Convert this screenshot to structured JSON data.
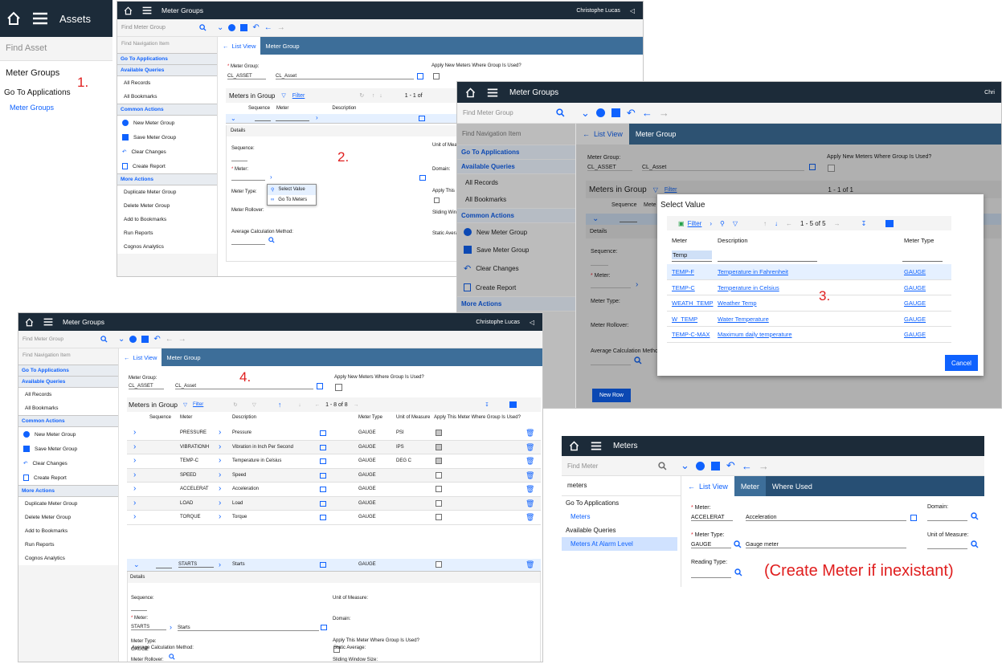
{
  "step_labels": {
    "s1": "1.",
    "s2": "2.",
    "s3": "3.",
    "s4": "4.",
    "note": "(Create Meter if inexistant)"
  },
  "assets": {
    "title": "Assets",
    "search_placeholder": "Find Asset",
    "section": "Meter Groups",
    "goto": "Go To Applications",
    "link": "Meter Groups"
  },
  "common": {
    "search_placeholder": "Find Meter Group",
    "nav_placeholder": "Find Navigation Item",
    "user": "Christophe Lucas",
    "app_title": "Meter Groups",
    "go_to_apps": "Go To Applications",
    "available_queries": "Available Queries",
    "all_records": "All Records",
    "all_bookmarks": "All Bookmarks",
    "common_actions": "Common Actions",
    "new": "New Meter Group",
    "save": "Save Meter Group",
    "clear": "Clear Changes",
    "report": "Create Report",
    "more_actions": "More Actions",
    "duplicate": "Duplicate Meter Group",
    "delete": "Delete Meter Group",
    "bookmark": "Add to Bookmarks",
    "run_reports": "Run Reports",
    "cognos": "Cognos Analytics",
    "list_view": "List View",
    "meter_group_tab": "Meter Group",
    "meter_group_label": "Meter Group:",
    "meter_group_value": "CL_ASSET",
    "meter_group_desc": "CL_Asset",
    "apply_new": "Apply New Meters Where Group Is Used?",
    "meters_in_group": "Meters in Group",
    "filter": "Filter",
    "col_sequence": "Sequence",
    "col_meter": "Meter",
    "col_description": "Description",
    "details": "Details",
    "sequence_label": "Sequence:",
    "meter_label": "Meter:",
    "meter_type_label": "Meter Type:",
    "meter_rollover_label": "Meter Rollover:",
    "avg_calc_label": "Average Calculation Method:",
    "uom_label": "Unit of Measure:",
    "domain_label": "Domain:",
    "apply_this": "Apply This Meter Where Group Is Used?",
    "sliding_label": "Sliding Window Size:",
    "static_label": "Static Average:",
    "new_row": "New Row"
  },
  "s2": {
    "pager": "1 - 1 of",
    "menu": [
      "Select Value",
      "Go To Meters"
    ],
    "uom_cut": "Unit of Meas",
    "apply_cut": "Apply This M",
    "sliding_cut": "Sliding Wind",
    "static_cut": "Static Avera",
    "user_cut": "Chri"
  },
  "s3": {
    "pager": "1 - 1 of 1",
    "dialog_title": "Select Value",
    "filter": "Filter",
    "pager_dialog": "1 - 5 of 5",
    "cols": [
      "Meter",
      "Description",
      "Meter Type"
    ],
    "filter_value": "Temp",
    "rows": [
      {
        "meter": "TEMP-F",
        "desc": "Temperature in Fahrenheit",
        "type": "GAUGE"
      },
      {
        "meter": "TEMP-C",
        "desc": "Temperature in Celsius",
        "type": "GAUGE"
      },
      {
        "meter": "WEATH_TEMP",
        "desc": "Weather Temp",
        "type": "GAUGE"
      },
      {
        "meter": "W_TEMP",
        "desc": "Water Temperature",
        "type": "GAUGE"
      },
      {
        "meter": "TEMP-C-MAX",
        "desc": "Maximum daily temperature",
        "type": "GAUGE"
      }
    ],
    "cancel": "Cancel",
    "mete_cut": "Mete",
    "avg_cut": "Average Calculation Metho"
  },
  "s4": {
    "pager": "1 - 8 of 8",
    "cols": [
      "Sequence",
      "Meter",
      "Description",
      "Meter Type",
      "Unit of Measure",
      "Apply This Meter Where Group Is Used?"
    ],
    "rows": [
      {
        "meter": "PRESSURE",
        "desc": "Pressure",
        "type": "GAUGE",
        "uom": "PSI"
      },
      {
        "meter": "VIBRATIONH",
        "desc": "Vibration in Inch Per Second",
        "type": "GAUGE",
        "uom": "IPS"
      },
      {
        "meter": "TEMP-C",
        "desc": "Temperature in Celsius",
        "type": "GAUGE",
        "uom": "DEG C"
      },
      {
        "meter": "SPEED",
        "desc": "Speed",
        "type": "GAUGE",
        "uom": ""
      },
      {
        "meter": "ACCELERAT",
        "desc": "Acceleration",
        "type": "GAUGE",
        "uom": ""
      },
      {
        "meter": "LOAD",
        "desc": "Load",
        "type": "GAUGE",
        "uom": ""
      },
      {
        "meter": "TORQUE",
        "desc": "Torque",
        "type": "GAUGE",
        "uom": ""
      }
    ],
    "active_row": {
      "meter": "STARTS",
      "desc": "Starts",
      "type": "GAUGE"
    },
    "detail_meter": "STARTS",
    "detail_desc": "Starts",
    "detail_type": "GAUGE"
  },
  "s5": {
    "title": "Meters",
    "search_placeholder": "Find Meter",
    "nav_value": "meters",
    "go_to_apps": "Go To Applications",
    "meters_link": "Meters",
    "available_queries": "Available Queries",
    "at_alarm": "Meters At Alarm Level",
    "list_view": "List View",
    "tab_meter": "Meter",
    "tab_where": "Where Used",
    "meter_label": "Meter:",
    "meter_value": "ACCELERAT",
    "meter_desc": "Acceleration",
    "domain_label": "Domain:",
    "type_label": "Meter Type:",
    "type_value": "GAUGE",
    "type_desc": "Gauge meter",
    "uom_label": "Unit of Measure:",
    "reading_label": "Reading Type:"
  }
}
